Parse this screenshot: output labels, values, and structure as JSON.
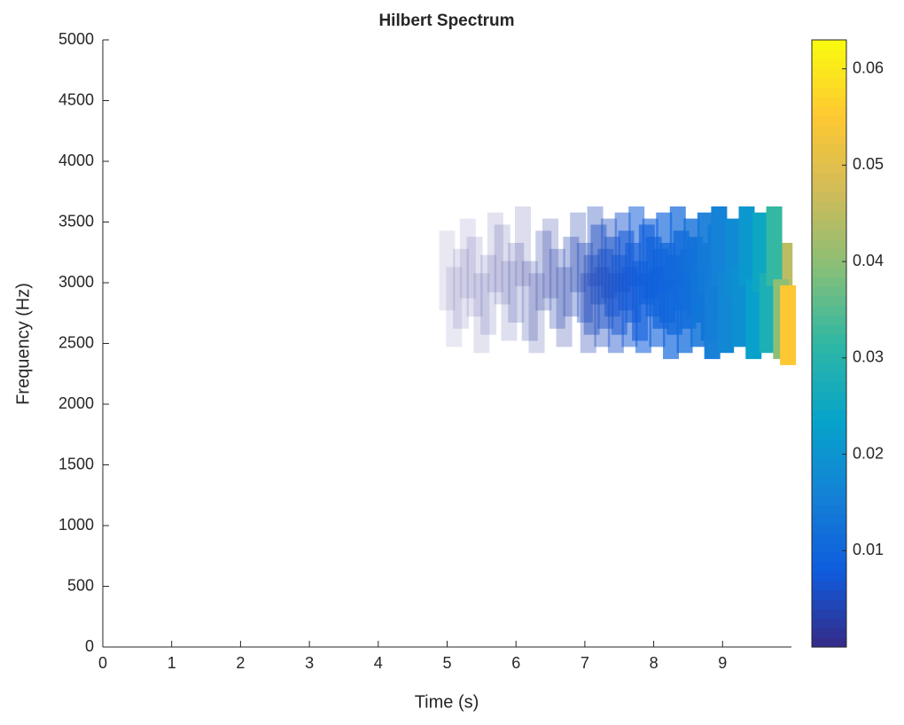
{
  "chart_data": {
    "type": "scatter",
    "title": "Hilbert Spectrum",
    "xlabel": "Time (s)",
    "ylabel": "Frequency (Hz)",
    "x": [
      5.0,
      5.2,
      5.4,
      5.6,
      5.8,
      6.0,
      6.2,
      6.4,
      6.6,
      6.8,
      7.0,
      7.1,
      7.2,
      7.3,
      7.4,
      7.5,
      7.6,
      7.7,
      7.8,
      7.9,
      8.0,
      8.1,
      8.2,
      8.3,
      8.4,
      8.5,
      8.6,
      8.7,
      8.8,
      8.9,
      9.0,
      9.1,
      9.2,
      9.3,
      9.4,
      9.5,
      9.6,
      9.7,
      9.8,
      9.9,
      5.1,
      5.3,
      5.5,
      5.7,
      5.9,
      6.1,
      6.3,
      6.5,
      6.7,
      6.9,
      7.05,
      7.15,
      7.25,
      7.35,
      7.45,
      7.55,
      7.65,
      7.75,
      7.85,
      7.95,
      8.05,
      8.15,
      8.25,
      8.35,
      8.45,
      8.55,
      8.65,
      8.75,
      8.85,
      8.95,
      9.05,
      9.15,
      9.25,
      9.35,
      9.45,
      9.55,
      9.65,
      9.75,
      9.85,
      9.95
    ],
    "y": [
      3100,
      2950,
      3050,
      2900,
      3150,
      3000,
      2850,
      3100,
      2950,
      3050,
      3000,
      2900,
      3150,
      2950,
      3050,
      2900,
      3100,
      3000,
      2850,
      3150,
      3050,
      2950,
      3000,
      2900,
      3100,
      2950,
      3050,
      3000,
      2850,
      3150,
      3000,
      2950,
      3100,
      2900,
      3050,
      3000,
      2950,
      3100,
      2900,
      3000,
      2800,
      3200,
      2750,
      3250,
      2850,
      3300,
      2750,
      3200,
      2800,
      3250,
      2750,
      3300,
      2800,
      3200,
      2750,
      3250,
      2800,
      3300,
      2750,
      3200,
      2800,
      3250,
      2700,
      3300,
      2750,
      3200,
      2800,
      3250,
      2700,
      3300,
      2750,
      3200,
      2800,
      3300,
      2700,
      3250,
      2750,
      3300,
      2700,
      2650
    ],
    "values": [
      0.0005,
      0.0008,
      0.001,
      0.0012,
      0.0015,
      0.002,
      0.0025,
      0.003,
      0.0035,
      0.004,
      0.005,
      0.0055,
      0.006,
      0.0065,
      0.007,
      0.0075,
      0.008,
      0.0085,
      0.009,
      0.0095,
      0.01,
      0.0105,
      0.011,
      0.0115,
      0.012,
      0.013,
      0.014,
      0.015,
      0.016,
      0.017,
      0.018,
      0.019,
      0.02,
      0.022,
      0.024,
      0.026,
      0.028,
      0.03,
      0.035,
      0.045,
      0.0004,
      0.0006,
      0.0008,
      0.001,
      0.0012,
      0.0015,
      0.002,
      0.0025,
      0.003,
      0.0035,
      0.004,
      0.0045,
      0.005,
      0.0055,
      0.006,
      0.0065,
      0.007,
      0.0075,
      0.008,
      0.0085,
      0.009,
      0.0095,
      0.01,
      0.0105,
      0.011,
      0.012,
      0.013,
      0.014,
      0.015,
      0.016,
      0.017,
      0.018,
      0.019,
      0.021,
      0.023,
      0.025,
      0.028,
      0.032,
      0.04,
      0.055
    ],
    "xlim": [
      0,
      10
    ],
    "xticks": [
      0,
      1,
      2,
      3,
      4,
      5,
      6,
      7,
      8,
      9
    ],
    "ylim": [
      0,
      5000
    ],
    "yticks": [
      0,
      500,
      1000,
      1500,
      2000,
      2500,
      3000,
      3500,
      4000,
      4500,
      5000
    ],
    "colorbar": {
      "clim": [
        0,
        0.063
      ],
      "ticks": [
        0.01,
        0.02,
        0.03,
        0.04,
        0.05,
        0.06
      ]
    },
    "colormap": [
      "#352a87",
      "#0f5cdd",
      "#1481d6",
      "#06a4ca",
      "#2eb7a4",
      "#87bf77",
      "#d1bb59",
      "#fec832",
      "#f9fb0e"
    ]
  }
}
